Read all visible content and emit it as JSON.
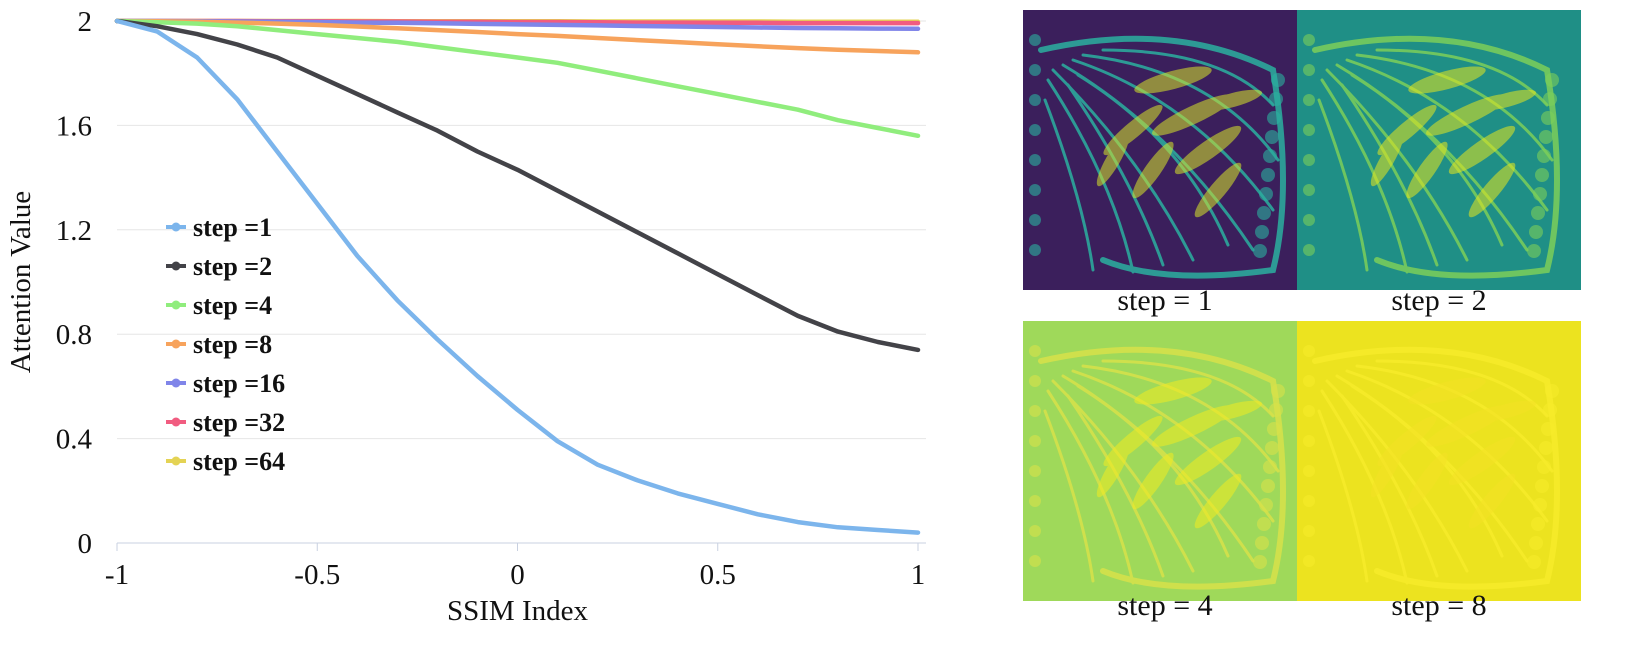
{
  "chart_data": {
    "type": "line",
    "xlabel": "SSIM Index",
    "ylabel": "Attention Value",
    "xlim": [
      -1,
      1
    ],
    "ylim": [
      0,
      2
    ],
    "x_ticks": [
      -1,
      -0.5,
      0,
      0.5,
      1
    ],
    "x_tick_labels": [
      "-1",
      "-0.5",
      "0",
      "0.5",
      "1"
    ],
    "y_ticks": [
      0,
      0.4,
      0.8,
      1.2,
      1.6,
      2
    ],
    "y_tick_labels": [
      "0",
      "0.4",
      "0.8",
      "1.2",
      "1.6",
      "2"
    ],
    "grid": "horizontal",
    "legend_position": "left",
    "x": [
      -1,
      -0.9,
      -0.8,
      -0.7,
      -0.6,
      -0.5,
      -0.4,
      -0.3,
      -0.2,
      -0.1,
      0,
      0.1,
      0.2,
      0.3,
      0.4,
      0.5,
      0.6,
      0.7,
      0.8,
      0.9,
      1
    ],
    "series": [
      {
        "name": "step =1",
        "color": "#7cb5ec",
        "values": [
          2.0,
          1.96,
          1.86,
          1.7,
          1.5,
          1.3,
          1.1,
          0.93,
          0.78,
          0.64,
          0.51,
          0.39,
          0.3,
          0.24,
          0.19,
          0.15,
          0.11,
          0.08,
          0.06,
          0.05,
          0.04
        ]
      },
      {
        "name": "step =2",
        "color": "#434348",
        "values": [
          2.0,
          1.98,
          1.95,
          1.91,
          1.86,
          1.79,
          1.72,
          1.65,
          1.58,
          1.5,
          1.43,
          1.35,
          1.27,
          1.19,
          1.11,
          1.03,
          0.95,
          0.87,
          0.81,
          0.77,
          0.74
        ]
      },
      {
        "name": "step =4",
        "color": "#90ed7d",
        "values": [
          2.0,
          1.995,
          1.99,
          1.98,
          1.965,
          1.95,
          1.935,
          1.92,
          1.9,
          1.88,
          1.86,
          1.84,
          1.81,
          1.78,
          1.75,
          1.72,
          1.69,
          1.66,
          1.62,
          1.59,
          1.56
        ]
      },
      {
        "name": "step =8",
        "color": "#f7a35c",
        "values": [
          2.0,
          1.999,
          1.997,
          1.994,
          1.99,
          1.985,
          1.979,
          1.972,
          1.965,
          1.958,
          1.95,
          1.943,
          1.935,
          1.927,
          1.919,
          1.911,
          1.903,
          1.896,
          1.89,
          1.885,
          1.88
        ]
      },
      {
        "name": "step =16",
        "color": "#8085e9",
        "values": [
          2.0,
          2.0,
          1.999,
          1.998,
          1.997,
          1.996,
          1.994,
          1.993,
          1.991,
          1.989,
          1.987,
          1.985,
          1.983,
          1.981,
          1.979,
          1.977,
          1.975,
          1.973,
          1.972,
          1.971,
          1.97
        ]
      },
      {
        "name": "step =32",
        "color": "#f15c80",
        "values": [
          2.0,
          2.0,
          2.0,
          2.0,
          1.999,
          1.999,
          1.998,
          1.998,
          1.997,
          1.997,
          1.996,
          1.996,
          1.995,
          1.994,
          1.994,
          1.993,
          1.993,
          1.992,
          1.992,
          1.992,
          1.992
        ]
      },
      {
        "name": "step =64",
        "color": "#e4d354",
        "values": [
          2.0,
          2.0,
          2.0,
          2.0,
          2.0,
          2.0,
          2.0,
          1.999,
          1.999,
          1.999,
          1.999,
          1.999,
          1.998,
          1.998,
          1.998,
          1.998,
          1.998,
          1.997,
          1.997,
          1.997,
          1.997
        ]
      }
    ]
  },
  "panels": [
    {
      "caption": "step = 1",
      "bg": "#3b1f5c",
      "vein": "#2bb0a0",
      "hl": "#d8e62a"
    },
    {
      "caption": "step = 2",
      "bg": "#1f8f86",
      "vein": "#7ccf5a",
      "hl": "#e6e71d"
    },
    {
      "caption": "step = 4",
      "bg": "#9fd95a",
      "vein": "#d8e24a",
      "hl": "#f1ec21"
    },
    {
      "caption": "step = 8",
      "bg": "#ece31f",
      "vein": "#f7ec2a",
      "hl": "#f4e226"
    }
  ]
}
